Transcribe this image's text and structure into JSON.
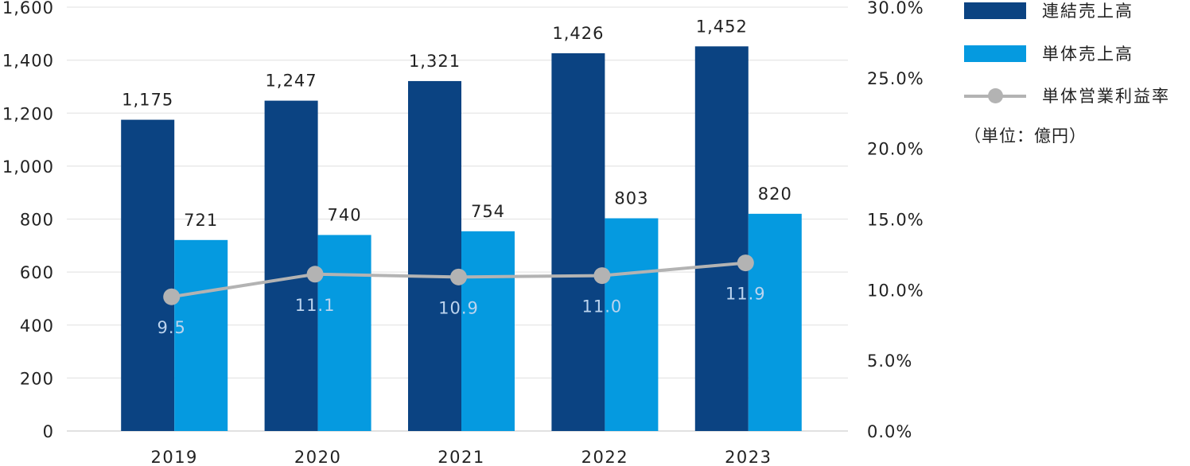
{
  "chart_data": {
    "type": "bar",
    "categories": [
      "2019",
      "2020",
      "2021",
      "2022",
      "2023"
    ],
    "series": [
      {
        "name": "連結売上高",
        "type": "bar",
        "axis": "left",
        "color": "#0b4382",
        "values": [
          1175,
          1247,
          1321,
          1426,
          1452
        ],
        "labels": [
          "1,175",
          "1,247",
          "1,321",
          "1,426",
          "1,452"
        ]
      },
      {
        "name": "単体売上高",
        "type": "bar",
        "axis": "left",
        "color": "#059ae0",
        "values": [
          721,
          740,
          754,
          803,
          820
        ],
        "labels": [
          "721",
          "740",
          "754",
          "803",
          "820"
        ]
      },
      {
        "name": "単体営業利益率",
        "type": "line",
        "axis": "right",
        "color": "#b3b3b3",
        "values": [
          9.5,
          11.1,
          10.9,
          11.0,
          11.9
        ],
        "labels": [
          "9.5",
          "11.1",
          "10.9",
          "11.0",
          "11.9"
        ]
      }
    ],
    "y_left": {
      "ticks": [
        "0",
        "200",
        "400",
        "600",
        "800",
        "1,000",
        "1,200",
        "1,400",
        "1,600"
      ],
      "range": [
        0,
        1600
      ]
    },
    "y_right": {
      "ticks": [
        "0.0%",
        "5.0%",
        "10.0%",
        "15.0%",
        "20.0%",
        "25.0%",
        "30.0%"
      ],
      "range": [
        0,
        30
      ]
    },
    "point_label_color": "#bcd4ee",
    "grid": true,
    "legend": "right",
    "unit_note": "（単位：億円）"
  }
}
